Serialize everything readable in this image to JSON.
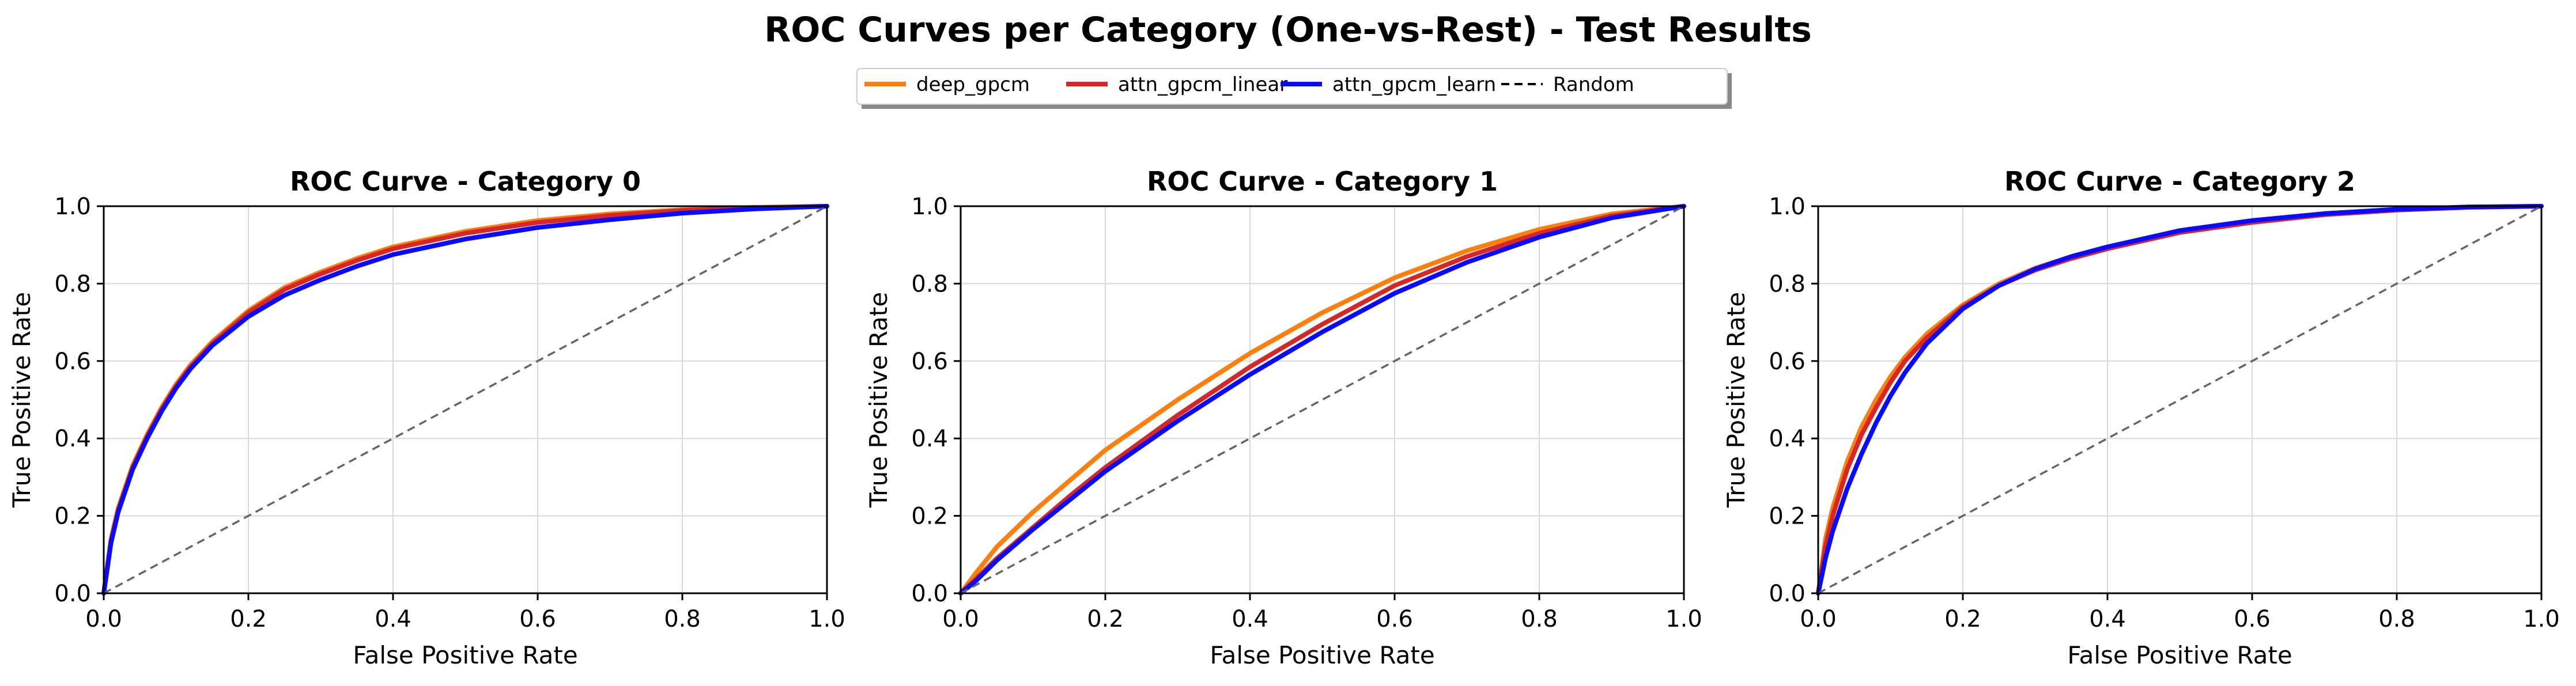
{
  "figure_title": "ROC Curves per Category (One-vs-Rest) - Test Results",
  "legend": [
    {
      "label": "deep_gpcm",
      "color": "#ff7f0e",
      "style": "solid"
    },
    {
      "label": "attn_gpcm_linear",
      "color": "#d62728",
      "style": "solid"
    },
    {
      "label": "attn_gpcm_learn",
      "color": "#0a0aff",
      "style": "solid"
    },
    {
      "label": "Random",
      "color": "#000000",
      "style": "dashed"
    }
  ],
  "chart_data": [
    {
      "type": "line",
      "title": "ROC Curve - Category 0",
      "xlabel": "False Positive Rate",
      "ylabel": "True Positive Rate",
      "xlim": [
        0,
        1
      ],
      "ylim": [
        0,
        1
      ],
      "xticks": [
        "0.0",
        "0.2",
        "0.4",
        "0.6",
        "0.8",
        "1.0"
      ],
      "yticks": [
        "0.0",
        "0.2",
        "0.4",
        "0.6",
        "0.8",
        "1.0"
      ],
      "grid": true,
      "series": [
        {
          "name": "deep_gpcm",
          "color": "#ff7f0e",
          "x": [
            0,
            0.01,
            0.02,
            0.04,
            0.06,
            0.08,
            0.1,
            0.12,
            0.15,
            0.2,
            0.25,
            0.3,
            0.35,
            0.4,
            0.5,
            0.6,
            0.7,
            0.8,
            0.9,
            1.0
          ],
          "y": [
            0,
            0.14,
            0.22,
            0.33,
            0.41,
            0.48,
            0.54,
            0.59,
            0.65,
            0.73,
            0.79,
            0.83,
            0.865,
            0.895,
            0.935,
            0.963,
            0.98,
            0.991,
            0.997,
            1.0
          ]
        },
        {
          "name": "attn_gpcm_linear",
          "color": "#d62728",
          "x": [
            0,
            0.01,
            0.02,
            0.04,
            0.06,
            0.08,
            0.1,
            0.12,
            0.15,
            0.2,
            0.25,
            0.3,
            0.35,
            0.4,
            0.5,
            0.6,
            0.7,
            0.8,
            0.9,
            1.0
          ],
          "y": [
            0,
            0.135,
            0.215,
            0.325,
            0.405,
            0.475,
            0.535,
            0.585,
            0.645,
            0.725,
            0.785,
            0.825,
            0.86,
            0.89,
            0.93,
            0.958,
            0.976,
            0.989,
            0.996,
            1.0
          ]
        },
        {
          "name": "attn_gpcm_learn",
          "color": "#0a0aff",
          "x": [
            0,
            0.01,
            0.02,
            0.04,
            0.06,
            0.08,
            0.1,
            0.12,
            0.15,
            0.2,
            0.25,
            0.3,
            0.35,
            0.4,
            0.5,
            0.6,
            0.7,
            0.8,
            0.9,
            1.0
          ],
          "y": [
            0,
            0.13,
            0.21,
            0.32,
            0.4,
            0.47,
            0.53,
            0.58,
            0.64,
            0.715,
            0.77,
            0.81,
            0.845,
            0.875,
            0.915,
            0.945,
            0.965,
            0.982,
            0.993,
            1.0
          ]
        },
        {
          "name": "Random",
          "color": "#666666",
          "dashed": true,
          "x": [
            0,
            1
          ],
          "y": [
            0,
            1
          ]
        }
      ]
    },
    {
      "type": "line",
      "title": "ROC Curve - Category 1",
      "xlabel": "False Positive Rate",
      "ylabel": "True Positive Rate",
      "xlim": [
        0,
        1
      ],
      "ylim": [
        0,
        1
      ],
      "xticks": [
        "0.0",
        "0.2",
        "0.4",
        "0.6",
        "0.8",
        "1.0"
      ],
      "yticks": [
        "0.0",
        "0.2",
        "0.4",
        "0.6",
        "0.8",
        "1.0"
      ],
      "grid": true,
      "series": [
        {
          "name": "deep_gpcm",
          "color": "#ff7f0e",
          "x": [
            0,
            0.02,
            0.05,
            0.1,
            0.15,
            0.2,
            0.3,
            0.4,
            0.5,
            0.6,
            0.7,
            0.8,
            0.9,
            1.0
          ],
          "y": [
            0,
            0.05,
            0.12,
            0.21,
            0.29,
            0.37,
            0.5,
            0.62,
            0.725,
            0.815,
            0.885,
            0.94,
            0.98,
            1.0
          ]
        },
        {
          "name": "attn_gpcm_linear",
          "color": "#d62728",
          "x": [
            0,
            0.02,
            0.05,
            0.1,
            0.15,
            0.2,
            0.3,
            0.4,
            0.5,
            0.6,
            0.7,
            0.8,
            0.9,
            1.0
          ],
          "y": [
            0,
            0.035,
            0.09,
            0.17,
            0.25,
            0.325,
            0.46,
            0.585,
            0.695,
            0.795,
            0.87,
            0.93,
            0.975,
            1.0
          ]
        },
        {
          "name": "attn_gpcm_learn",
          "color": "#0a0aff",
          "x": [
            0,
            0.02,
            0.05,
            0.1,
            0.15,
            0.2,
            0.3,
            0.4,
            0.5,
            0.6,
            0.7,
            0.8,
            0.9,
            1.0
          ],
          "y": [
            0,
            0.03,
            0.085,
            0.165,
            0.24,
            0.315,
            0.445,
            0.565,
            0.675,
            0.775,
            0.855,
            0.92,
            0.97,
            1.0
          ]
        },
        {
          "name": "Random",
          "color": "#666666",
          "dashed": true,
          "x": [
            0,
            1
          ],
          "y": [
            0,
            1
          ]
        }
      ]
    },
    {
      "type": "line",
      "title": "ROC Curve - Category 2",
      "xlabel": "False Positive Rate",
      "ylabel": "True Positive Rate",
      "xlim": [
        0,
        1
      ],
      "ylim": [
        0,
        1
      ],
      "xticks": [
        "0.0",
        "0.2",
        "0.4",
        "0.6",
        "0.8",
        "1.0"
      ],
      "yticks": [
        "0.0",
        "0.2",
        "0.4",
        "0.6",
        "0.8",
        "1.0"
      ],
      "grid": true,
      "series": [
        {
          "name": "deep_gpcm",
          "color": "#ff7f0e",
          "x": [
            0,
            0.01,
            0.02,
            0.04,
            0.06,
            0.08,
            0.1,
            0.12,
            0.15,
            0.2,
            0.25,
            0.3,
            0.35,
            0.4,
            0.5,
            0.6,
            0.7,
            0.8,
            0.9,
            1.0
          ],
          "y": [
            0,
            0.14,
            0.22,
            0.34,
            0.43,
            0.5,
            0.56,
            0.61,
            0.67,
            0.745,
            0.8,
            0.84,
            0.87,
            0.895,
            0.935,
            0.962,
            0.98,
            0.992,
            0.998,
            1.0
          ]
        },
        {
          "name": "attn_gpcm_linear",
          "color": "#d62728",
          "x": [
            0,
            0.01,
            0.02,
            0.04,
            0.06,
            0.08,
            0.1,
            0.12,
            0.15,
            0.2,
            0.25,
            0.3,
            0.35,
            0.4,
            0.5,
            0.6,
            0.7,
            0.8,
            0.9,
            1.0
          ],
          "y": [
            0,
            0.12,
            0.2,
            0.32,
            0.41,
            0.48,
            0.545,
            0.6,
            0.66,
            0.74,
            0.795,
            0.835,
            0.865,
            0.89,
            0.932,
            0.958,
            0.978,
            0.99,
            0.997,
            1.0
          ]
        },
        {
          "name": "attn_gpcm_learn",
          "color": "#0a0aff",
          "x": [
            0,
            0.01,
            0.02,
            0.04,
            0.06,
            0.08,
            0.1,
            0.12,
            0.15,
            0.2,
            0.25,
            0.3,
            0.35,
            0.4,
            0.5,
            0.6,
            0.7,
            0.8,
            0.9,
            1.0
          ],
          "y": [
            0,
            0.09,
            0.16,
            0.27,
            0.36,
            0.44,
            0.51,
            0.57,
            0.645,
            0.735,
            0.795,
            0.838,
            0.87,
            0.895,
            0.937,
            0.963,
            0.981,
            0.992,
            0.998,
            1.0
          ]
        },
        {
          "name": "Random",
          "color": "#666666",
          "dashed": true,
          "x": [
            0,
            1
          ],
          "y": [
            0,
            1
          ]
        }
      ]
    }
  ]
}
